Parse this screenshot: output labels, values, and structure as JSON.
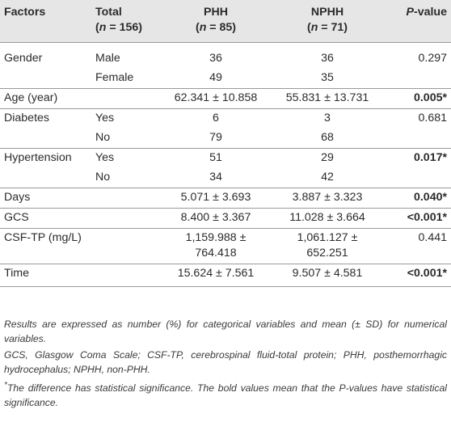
{
  "header": {
    "factors": "Factors",
    "total_label": "Total",
    "total_n": "(n = 156)",
    "phh_label": "PHH",
    "phh_n": "(n = 85)",
    "nphh_label": "NPHH",
    "nphh_n": "(n = 71)",
    "pvalue": "P-value"
  },
  "rows": [
    {
      "factor": "Gender",
      "sub": "Male",
      "phh": "36",
      "nphh": "36",
      "p": "0.297"
    },
    {
      "factor": "",
      "sub": "Female",
      "phh": "49",
      "nphh": "35",
      "p": ""
    },
    {
      "factor": "Age (year)",
      "sub": "",
      "phh": "62.341 ± 10.858",
      "nphh": "55.831 ± 13.731",
      "p": "0.005*"
    },
    {
      "factor": "Diabetes",
      "sub": "Yes",
      "phh": "6",
      "nphh": "3",
      "p": "0.681"
    },
    {
      "factor": "",
      "sub": "No",
      "phh": "79",
      "nphh": "68",
      "p": ""
    },
    {
      "factor": "Hypertension",
      "sub": "Yes",
      "phh": "51",
      "nphh": "29",
      "p": "0.017*"
    },
    {
      "factor": "",
      "sub": "No",
      "phh": "34",
      "nphh": "42",
      "p": ""
    },
    {
      "factor": "Days",
      "sub": "",
      "phh": "5.071 ± 3.693",
      "nphh": "3.887 ± 3.323",
      "p": "0.040*"
    },
    {
      "factor": "GCS",
      "sub": "",
      "phh": "8.400 ± 3.367",
      "nphh": "11.028 ± 3.664",
      "p": "<0.001*"
    },
    {
      "factor": "CSF-TP (mg/L)",
      "sub": "",
      "phh_l1": "1,159.988 ±",
      "phh_l2": "764.418",
      "nphh_l1": "1,061.127 ±",
      "nphh_l2": "652.251",
      "p": "0.441"
    },
    {
      "factor": "Time",
      "sub": "",
      "phh": "15.624 ± 7.561",
      "nphh": "9.507 ± 4.581",
      "p": "<0.001*"
    }
  ],
  "notes": {
    "n1": "Results are expressed as number (%) for categorical variables and mean (± SD) for numerical variables.",
    "n2": "GCS, Glasgow Coma Scale; CSF-TP, cerebrospinal fluid-total protein; PHH, posthemorrhagic hydrocephalus; NPHH, non-PHH.",
    "n3_mark": "*",
    "n3": "The difference has statistical significance. The bold values mean that the P-values have statistical significance."
  }
}
